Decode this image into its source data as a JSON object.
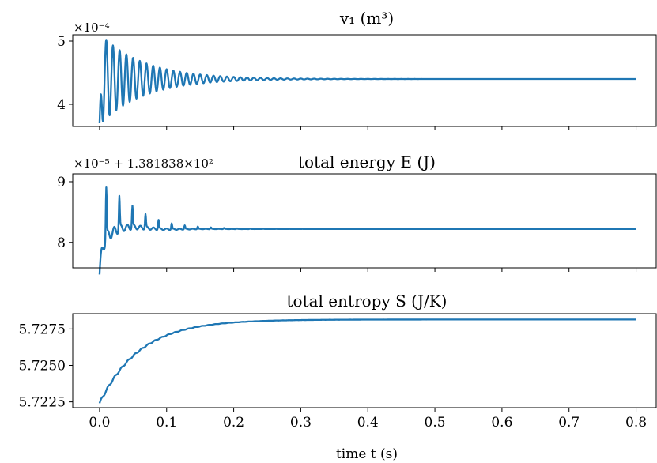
{
  "chart_data": [
    {
      "type": "line",
      "title": "v₁ (m³)",
      "scale_label": "×10⁻⁴",
      "series": [
        {
          "color": "#1f77b4",
          "model": "damped-oscillation",
          "x_start": 0.0,
          "x_end": 0.8,
          "start_value": 3.7,
          "final_value": 4.4,
          "first_peak": 5.02,
          "first_peak_x": 0.01,
          "period": 0.01,
          "decay_time": 0.065
        }
      ],
      "xlim": [
        -0.04,
        0.83
      ],
      "ylim": [
        3.65,
        5.1
      ],
      "yticks": [
        4,
        5
      ],
      "ytick_labels": [
        "4",
        "5"
      ],
      "xticks": [
        0,
        0.1,
        0.2,
        0.3,
        0.4,
        0.5,
        0.6,
        0.7,
        0.8
      ],
      "show_xtick_labels": false,
      "grid": false,
      "legend": "none"
    },
    {
      "type": "line",
      "title": "total energy E (J)",
      "scale_label": "×10⁻⁵ + 1.381838×10²",
      "series": [
        {
          "color": "#1f77b4",
          "model": "spiky-relaxation",
          "x_start": 0.0,
          "x_end": 0.8,
          "start_value": 7.65,
          "final_value": 8.22,
          "first_peak": 9.05,
          "first_peak_x": 0.01,
          "period": 0.0195,
          "decay_time": 0.045
        }
      ],
      "xlim": [
        -0.04,
        0.83
      ],
      "ylim": [
        7.58,
        9.13
      ],
      "yticks": [
        8,
        9
      ],
      "ytick_labels": [
        "8",
        "9"
      ],
      "xticks": [
        0,
        0.1,
        0.2,
        0.3,
        0.4,
        0.5,
        0.6,
        0.7,
        0.8
      ],
      "show_xtick_labels": false,
      "grid": false,
      "legend": "none"
    },
    {
      "type": "line",
      "title": "total entropy S (J/K)",
      "xlabel": "time t (s)",
      "series": [
        {
          "color": "#1f77b4",
          "model": "saturating-rise",
          "x_start": 0.0,
          "x_end": 0.8,
          "start_value": 5.7224,
          "final_value": 5.72815,
          "decay_time": 0.06,
          "ripple_period": 0.01
        }
      ],
      "xlim": [
        -0.04,
        0.83
      ],
      "ylim": [
        5.7221,
        5.72855
      ],
      "yticks": [
        5.7225,
        5.725,
        5.7275
      ],
      "ytick_labels": [
        "5.7225",
        "5.7250",
        "5.7275"
      ],
      "xticks": [
        0,
        0.1,
        0.2,
        0.3,
        0.4,
        0.5,
        0.6,
        0.7,
        0.8
      ],
      "xtick_labels": [
        "0.0",
        "0.1",
        "0.2",
        "0.3",
        "0.4",
        "0.5",
        "0.6",
        "0.7",
        "0.8"
      ],
      "show_xtick_labels": true,
      "grid": false,
      "legend": "none"
    }
  ]
}
